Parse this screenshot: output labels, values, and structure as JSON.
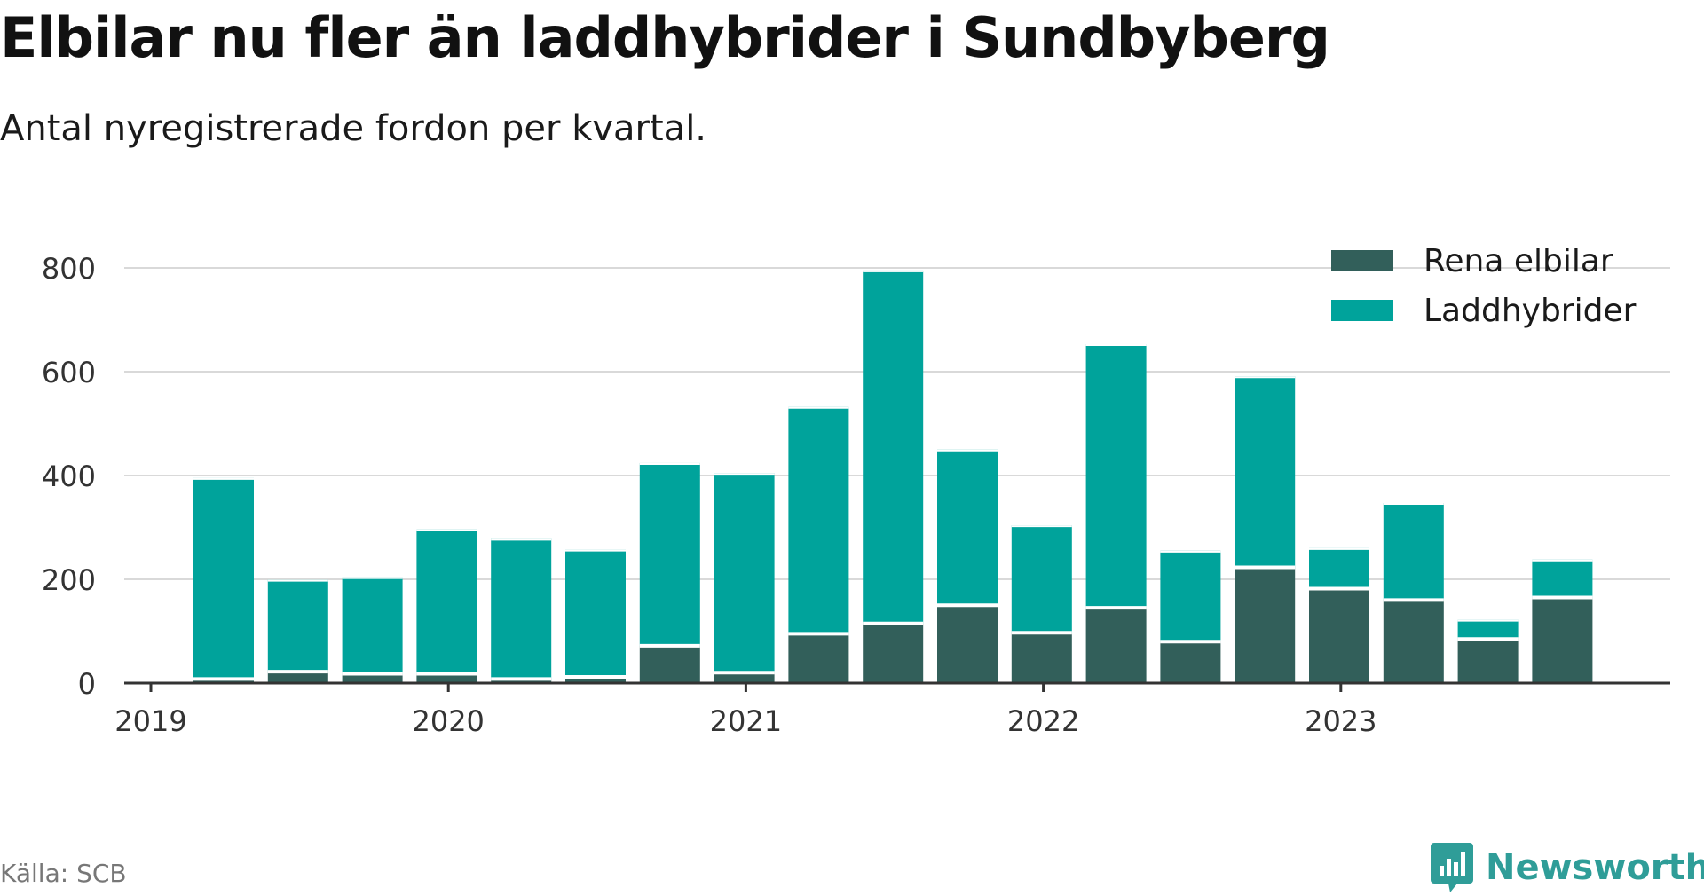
{
  "title": "Elbilar nu fler än laddhybrider i Sundbyberg",
  "subtitle": "Antal nyregistrerade fordon per kvartal.",
  "source": "Källa: SCB",
  "brand": {
    "name": "Newsworthy",
    "icon": "newsworthy-logo-icon"
  },
  "colors": {
    "elbilar": "#325f5a",
    "laddhybrider": "#00a39b",
    "grid": "#d9d9d9",
    "axis": "#333333",
    "brand": "#2f9d98"
  },
  "chart_data": {
    "type": "bar",
    "stacked": true,
    "title": "Elbilar nu fler än laddhybrider i Sundbyberg",
    "subtitle": "Antal nyregistrerade fordon per kvartal.",
    "xlabel": "",
    "ylabel": "",
    "ylim": [
      0,
      800
    ],
    "yticks": [
      0,
      200,
      400,
      600,
      800
    ],
    "grid": true,
    "legend_position": "top-right",
    "x_tick_labels": [
      "2019",
      "2020",
      "2021",
      "2022",
      "2023"
    ],
    "categories": [
      "2019 Q2",
      "2019 Q3",
      "2019 Q4",
      "2020 Q1",
      "2020 Q2",
      "2020 Q3",
      "2020 Q4",
      "2021 Q1",
      "2021 Q2",
      "2021 Q3",
      "2021 Q4",
      "2022 Q1",
      "2022 Q2",
      "2022 Q3",
      "2022 Q4",
      "2023 Q1",
      "2023 Q2",
      "2023 Q3",
      "2023 Q4"
    ],
    "series": [
      {
        "name": "Rena elbilar",
        "color": "#325f5a",
        "values": [
          8,
          22,
          18,
          18,
          8,
          12,
          72,
          20,
          95,
          115,
          150,
          97,
          145,
          80,
          223,
          182,
          160,
          85,
          165
        ]
      },
      {
        "name": "Laddhybrider",
        "color": "#00a39b",
        "values": [
          387,
          177,
          186,
          278,
          270,
          245,
          352,
          385,
          437,
          680,
          300,
          207,
          508,
          175,
          368,
          78,
          187,
          37,
          73
        ]
      }
    ]
  }
}
